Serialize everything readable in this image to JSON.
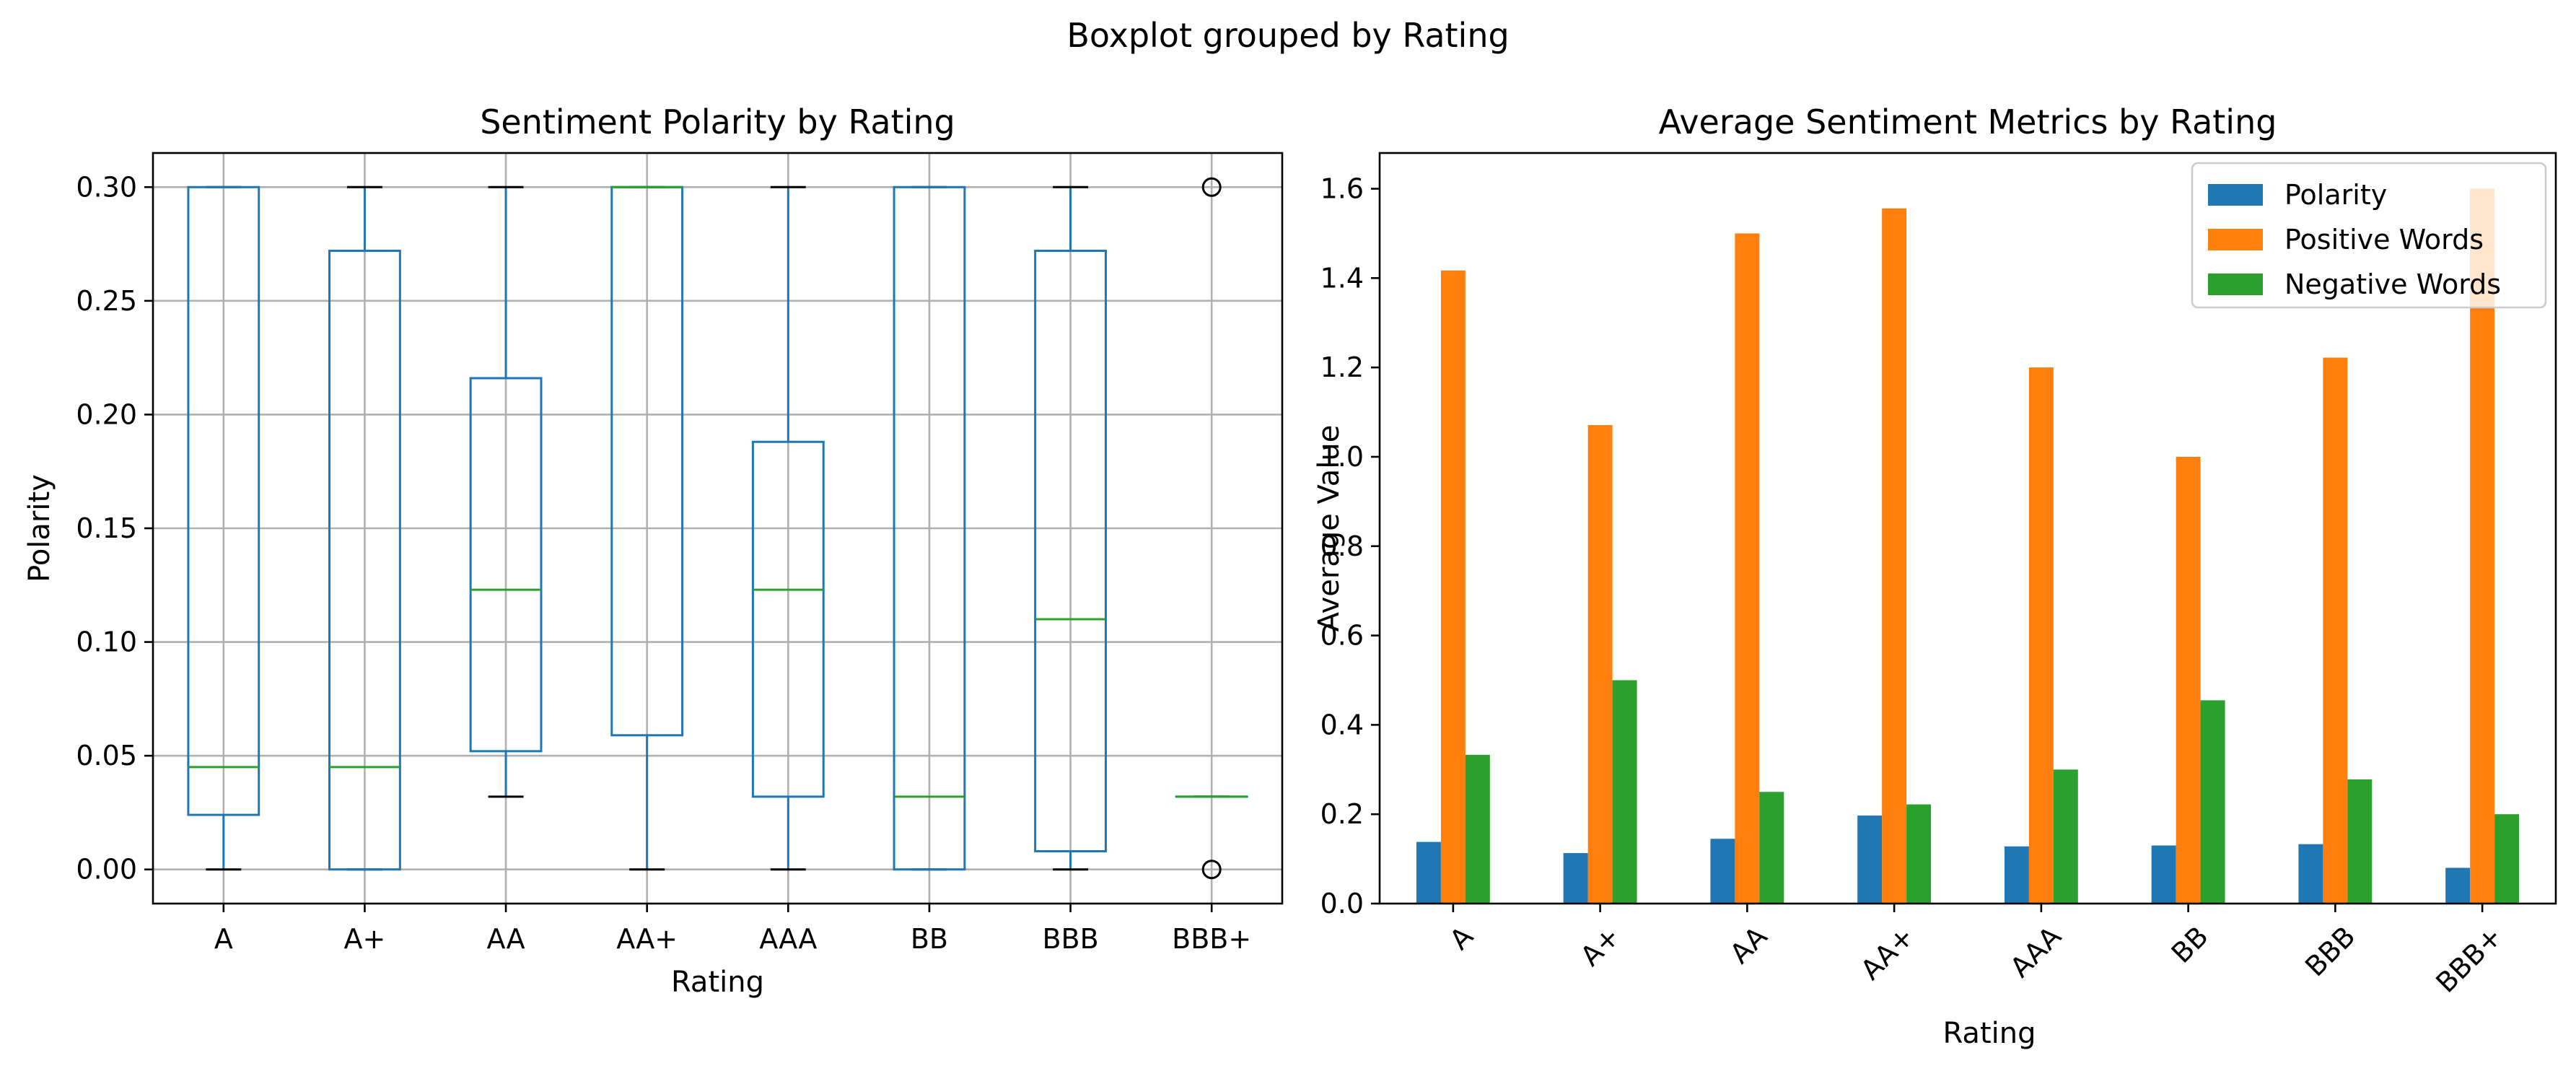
{
  "figure": {
    "suptitle": "Boxplot grouped by Rating"
  },
  "chart_data": [
    {
      "type": "box",
      "title": "Sentiment Polarity by Rating",
      "xlabel": "Rating",
      "ylabel": "Polarity",
      "ylim": [
        -0.015,
        0.315
      ],
      "yticks": [
        0.0,
        0.05,
        0.1,
        0.15,
        0.2,
        0.25,
        0.3
      ],
      "ytick_labels": [
        "0.00",
        "0.05",
        "0.10",
        "0.15",
        "0.20",
        "0.25",
        "0.30"
      ],
      "grid": true,
      "categories": [
        "A",
        "A+",
        "AA",
        "AA+",
        "AAA",
        "BB",
        "BBB",
        "BBB+"
      ],
      "boxes": [
        {
          "category": "A",
          "whisker_low": 0.0,
          "q1": 0.024,
          "median": 0.045,
          "q3": 0.3,
          "whisker_high": 0.3,
          "outliers": []
        },
        {
          "category": "A+",
          "whisker_low": 0.0,
          "q1": 0.0,
          "median": 0.045,
          "q3": 0.272,
          "whisker_high": 0.3,
          "outliers": []
        },
        {
          "category": "AA",
          "whisker_low": 0.032,
          "q1": 0.052,
          "median": 0.123,
          "q3": 0.216,
          "whisker_high": 0.3,
          "outliers": []
        },
        {
          "category": "AA+",
          "whisker_low": 0.0,
          "q1": 0.059,
          "median": 0.3,
          "q3": 0.3,
          "whisker_high": 0.3,
          "outliers": []
        },
        {
          "category": "AAA",
          "whisker_low": 0.0,
          "q1": 0.032,
          "median": 0.123,
          "q3": 0.188,
          "whisker_high": 0.3,
          "outliers": []
        },
        {
          "category": "BB",
          "whisker_low": 0.0,
          "q1": 0.0,
          "median": 0.032,
          "q3": 0.3,
          "whisker_high": 0.3,
          "outliers": []
        },
        {
          "category": "BBB",
          "whisker_low": 0.0,
          "q1": 0.008,
          "median": 0.11,
          "q3": 0.272,
          "whisker_high": 0.3,
          "outliers": []
        },
        {
          "category": "BBB+",
          "whisker_low": 0.032,
          "q1": 0.032,
          "median": 0.032,
          "q3": 0.032,
          "whisker_high": 0.032,
          "outliers": [
            0.0,
            0.3
          ]
        }
      ],
      "colors": {
        "box": "#1f77b4",
        "median": "#2ca02c",
        "whisker_cap": "#000000",
        "outlier": "#000000"
      }
    },
    {
      "type": "bar",
      "title": "Average Sentiment Metrics by Rating",
      "xlabel": "Rating",
      "ylabel": "Average Value",
      "ylim": [
        0,
        1.68
      ],
      "yticks": [
        0.0,
        0.2,
        0.4,
        0.6,
        0.8,
        1.0,
        1.2,
        1.4,
        1.6
      ],
      "ytick_labels": [
        "0.0",
        "0.2",
        "0.4",
        "0.6",
        "0.8",
        "1.0",
        "1.2",
        "1.4",
        "1.6"
      ],
      "grid": false,
      "legend": "top-right",
      "xtick_rotation": 45,
      "categories": [
        "A",
        "A+",
        "AA",
        "AA+",
        "AAA",
        "BB",
        "BBB",
        "BBB+"
      ],
      "series": [
        {
          "name": "Polarity",
          "color": "#1f77b4",
          "values": [
            0.138,
            0.113,
            0.145,
            0.197,
            0.128,
            0.13,
            0.133,
            0.08
          ]
        },
        {
          "name": "Positive Words",
          "color": "#ff7f0e",
          "values": [
            1.417,
            1.071,
            1.5,
            1.556,
            1.2,
            1.0,
            1.222,
            1.6
          ]
        },
        {
          "name": "Negative Words",
          "color": "#2ca02c",
          "values": [
            0.333,
            0.5,
            0.25,
            0.222,
            0.3,
            0.455,
            0.278,
            0.2
          ]
        }
      ]
    }
  ]
}
